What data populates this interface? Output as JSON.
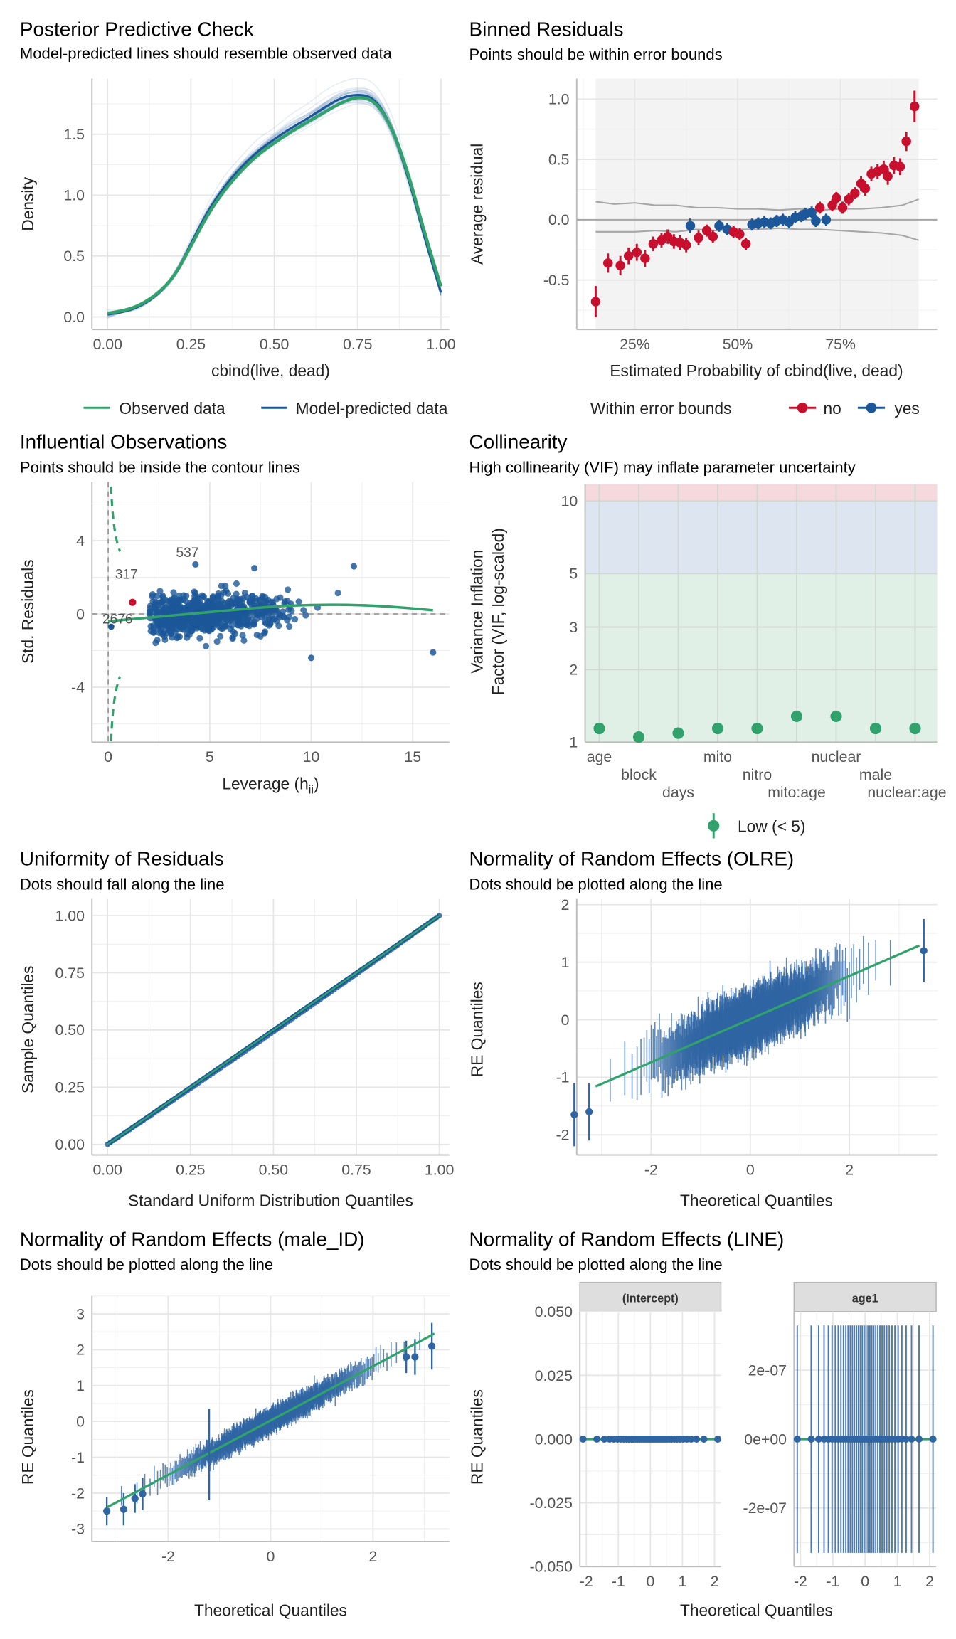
{
  "colors": {
    "green": "#31a26c",
    "blue": "#1b5799",
    "red": "#c8102e",
    "grid": "#e6e6e6",
    "axis": "#bdbdbd"
  },
  "chart_data": [
    {
      "type": "line",
      "title": "Posterior Predictive Check",
      "subtitle": "Model-predicted lines should resemble observed data",
      "xlabel": "cbind(live, dead)",
      "ylabel": "Density",
      "xlim": [
        -0.047,
        1.025
      ],
      "ylim": [
        -0.103,
        1.957
      ],
      "xticks": [
        0,
        0.25,
        0.5,
        0.75,
        1
      ],
      "xtick_labels": [
        "0.00",
        "0.25",
        "0.50",
        "0.75",
        "1.00"
      ],
      "yticks": [
        0,
        0.5,
        1,
        1.5
      ],
      "ytick_labels": [
        "0.0",
        "0.5",
        "1.0",
        "1.5"
      ],
      "legend": "bottom",
      "x": [
        0,
        0.05,
        0.1,
        0.15,
        0.2,
        0.25,
        0.3,
        0.35,
        0.4,
        0.45,
        0.5,
        0.55,
        0.6,
        0.65,
        0.7,
        0.75,
        0.8,
        0.85,
        0.9,
        0.95,
        1.0
      ],
      "series": [
        {
          "name": "Observed data",
          "color": "#31a26c",
          "values": [
            0.03,
            0.05,
            0.1,
            0.19,
            0.33,
            0.58,
            0.84,
            1.04,
            1.2,
            1.33,
            1.43,
            1.52,
            1.6,
            1.68,
            1.76,
            1.81,
            1.78,
            1.58,
            1.2,
            0.7,
            0.25
          ]
        },
        {
          "name": "Model-predicted data",
          "color": "#1b5799",
          "values": [
            0.02,
            0.04,
            0.09,
            0.18,
            0.33,
            0.6,
            0.87,
            1.07,
            1.23,
            1.36,
            1.46,
            1.55,
            1.63,
            1.72,
            1.8,
            1.83,
            1.8,
            1.58,
            1.17,
            0.66,
            0.2
          ]
        }
      ]
    },
    {
      "type": "scatter",
      "title": "Binned Residuals",
      "subtitle": "Points should be within error bounds",
      "xlabel": "Estimated Probability of cbind(live, dead)",
      "ylabel": "Average residual",
      "xlim": [
        10.9,
        98.5
      ],
      "ylim": [
        -0.91,
        1.17
      ],
      "xticks": [
        25,
        50,
        75
      ],
      "xtick_labels": [
        "25%",
        "50%",
        "75%"
      ],
      "yticks": [
        -0.5,
        0,
        0.5,
        1
      ],
      "ytick_labels": [
        "-0.5",
        "0.0",
        "0.5",
        "1.0"
      ],
      "legend": "bottom",
      "legend_title": "Within error bounds",
      "groups": [
        {
          "name": "no",
          "color": "#c8102e"
        },
        {
          "name": "yes",
          "color": "#1b5799"
        }
      ],
      "points": [
        [
          15.5,
          -0.68,
          0.13,
          "no"
        ],
        [
          18.5,
          -0.36,
          0.08,
          "no"
        ],
        [
          21.5,
          -0.38,
          0.08,
          "no"
        ],
        [
          23.5,
          -0.3,
          0.07,
          "no"
        ],
        [
          25.5,
          -0.27,
          0.07,
          "no"
        ],
        [
          27.5,
          -0.32,
          0.07,
          "no"
        ],
        [
          29.5,
          -0.2,
          0.06,
          "no"
        ],
        [
          31.5,
          -0.17,
          0.06,
          "no"
        ],
        [
          33,
          -0.14,
          0.06,
          "no"
        ],
        [
          34.5,
          -0.18,
          0.06,
          "no"
        ],
        [
          36,
          -0.19,
          0.06,
          "no"
        ],
        [
          37.5,
          -0.21,
          0.06,
          "no"
        ],
        [
          38.5,
          -0.05,
          0.06,
          "yes"
        ],
        [
          40.5,
          -0.15,
          0.06,
          "no"
        ],
        [
          42.5,
          -0.09,
          0.05,
          "no"
        ],
        [
          44,
          -0.14,
          0.05,
          "no"
        ],
        [
          45.5,
          -0.05,
          0.05,
          "yes"
        ],
        [
          47.5,
          -0.08,
          0.05,
          "yes"
        ],
        [
          49,
          -0.1,
          0.05,
          "no"
        ],
        [
          50.5,
          -0.12,
          0.05,
          "no"
        ],
        [
          52,
          -0.2,
          0.05,
          "no"
        ],
        [
          53.5,
          -0.04,
          0.05,
          "yes"
        ],
        [
          55,
          -0.03,
          0.05,
          "yes"
        ],
        [
          56.5,
          -0.02,
          0.05,
          "yes"
        ],
        [
          58,
          -0.03,
          0.05,
          "yes"
        ],
        [
          59.5,
          -0.01,
          0.05,
          "yes"
        ],
        [
          61,
          0.0,
          0.05,
          "yes"
        ],
        [
          62.5,
          -0.02,
          0.05,
          "yes"
        ],
        [
          64,
          0.02,
          0.05,
          "yes"
        ],
        [
          65.5,
          0.03,
          0.05,
          "yes"
        ],
        [
          66.5,
          0.05,
          0.05,
          "yes"
        ],
        [
          68,
          0.06,
          0.05,
          "yes"
        ],
        [
          69,
          -0.01,
          0.05,
          "yes"
        ],
        [
          70,
          0.1,
          0.05,
          "no"
        ],
        [
          71.5,
          0.0,
          0.05,
          "yes"
        ],
        [
          73,
          0.12,
          0.05,
          "no"
        ],
        [
          74,
          0.18,
          0.05,
          "no"
        ],
        [
          75.5,
          0.1,
          0.05,
          "no"
        ],
        [
          77,
          0.17,
          0.05,
          "no"
        ],
        [
          78.5,
          0.22,
          0.05,
          "no"
        ],
        [
          80,
          0.3,
          0.06,
          "no"
        ],
        [
          81,
          0.26,
          0.06,
          "no"
        ],
        [
          82.5,
          0.38,
          0.06,
          "no"
        ],
        [
          84,
          0.4,
          0.06,
          "no"
        ],
        [
          85.5,
          0.42,
          0.07,
          "no"
        ],
        [
          86.5,
          0.36,
          0.07,
          "no"
        ],
        [
          88,
          0.45,
          0.07,
          "no"
        ],
        [
          89.5,
          0.44,
          0.07,
          "no"
        ],
        [
          91,
          0.65,
          0.08,
          "no"
        ],
        [
          93,
          0.94,
          0.13,
          "no"
        ]
      ],
      "bounds": {
        "x": [
          15.5,
          20,
          25,
          30,
          35,
          40,
          45,
          50,
          55,
          60,
          65,
          70,
          75,
          80,
          85,
          90,
          94
        ],
        "upper": [
          0.15,
          0.13,
          0.14,
          0.12,
          0.12,
          0.1,
          0.1,
          0.09,
          0.09,
          0.08,
          0.09,
          0.08,
          0.09,
          0.09,
          0.1,
          0.12,
          0.17
        ],
        "lower": [
          -0.1,
          -0.1,
          -0.1,
          -0.09,
          -0.1,
          -0.08,
          -0.09,
          -0.08,
          -0.08,
          -0.07,
          -0.08,
          -0.08,
          -0.09,
          -0.1,
          -0.11,
          -0.13,
          -0.17
        ]
      }
    },
    {
      "type": "scatter",
      "title": "Influential Observations",
      "subtitle": "Points should be inside the contour lines",
      "xlabel_parts": [
        "Leverage (h",
        "ii",
        ")"
      ],
      "ylabel": "Std. Residuals",
      "xlim": [
        -0.8,
        16.8
      ],
      "ylim": [
        -7.0,
        7.2
      ],
      "xticks": [
        0,
        5,
        10,
        15
      ],
      "xtick_labels": [
        "0",
        "5",
        "10",
        "15"
      ],
      "yticks": [
        -4,
        0,
        4
      ],
      "ytick_labels": [
        "-4",
        "0",
        "4"
      ],
      "labeled_points": [
        {
          "label": "537",
          "x": 3.9,
          "y": 3.4,
          "color": "#1b5799"
        },
        {
          "label": "317",
          "x": 0.9,
          "y": 2.2,
          "color": "#1b5799"
        },
        {
          "label": "2676",
          "x": 0.46,
          "y": -0.23,
          "color": "#c8102e",
          "px": 1.2,
          "py": 0.63
        }
      ],
      "outliers": [
        [
          16,
          -2.1
        ],
        [
          10,
          -2.4
        ],
        [
          12.1,
          2.6
        ],
        [
          7.2,
          2.5
        ],
        [
          4.3,
          2.7
        ]
      ],
      "loess": [
        [
          0,
          -0.4
        ],
        [
          2,
          -0.2
        ],
        [
          4,
          0
        ],
        [
          6,
          0.2
        ],
        [
          8,
          0.4
        ],
        [
          10,
          0.5
        ],
        [
          12,
          0.5
        ],
        [
          14,
          0.4
        ],
        [
          16,
          0.2
        ]
      ]
    },
    {
      "type": "scatter",
      "title": "Collinearity",
      "subtitle": "High collinearity (VIF) may inflate parameter uncertainty",
      "ylabel_lines": [
        "Variance Inflation",
        "Factor (VIF, log-scaled)"
      ],
      "yscale": "log",
      "ylim": [
        1,
        11.75
      ],
      "yticks": [
        1,
        2,
        3,
        5,
        10
      ],
      "ytick_labels": [
        "1",
        "2",
        "3",
        "5",
        "10"
      ],
      "categories": [
        "age",
        "block",
        "days",
        "mito",
        "nitro",
        "mito:age",
        "nuclear",
        "male",
        "nuclear:age"
      ],
      "values": [
        1.14,
        1.05,
        1.09,
        1.14,
        1.14,
        1.28,
        1.28,
        1.14,
        1.14
      ],
      "bands": [
        {
          "from": 1,
          "to": 5,
          "color": "#e0f0e7"
        },
        {
          "from": 5,
          "to": 10,
          "color": "#dde5f0"
        },
        {
          "from": 10,
          "to": 11.75,
          "color": "#f5d9dd"
        }
      ],
      "legend": "bottom",
      "legend_label": "Low (< 5)"
    },
    {
      "type": "scatter",
      "title": "Uniformity of Residuals",
      "subtitle": "Dots should fall along the line",
      "xlabel": "Standard Uniform Distribution Quantiles",
      "ylabel": "Sample Quantiles",
      "xlim": [
        -0.047,
        1.03
      ],
      "ylim": [
        -0.046,
        1.073
      ],
      "xticks": [
        0,
        0.25,
        0.5,
        0.75,
        1
      ],
      "xtick_labels": [
        "0.00",
        "0.25",
        "0.50",
        "0.75",
        "1.00"
      ],
      "yticks": [
        0,
        0.25,
        0.5,
        0.75,
        1
      ],
      "ytick_labels": [
        "0.00",
        "0.25",
        "0.50",
        "0.75",
        "1.00"
      ]
    },
    {
      "type": "scatter",
      "title": "Normality of Random Effects (OLRE)",
      "subtitle": "Dots should be plotted along the line",
      "xlabel": "Theoretical Quantiles",
      "ylabel": "RE Quantiles",
      "xlim": [
        -3.5,
        3.77
      ],
      "ylim": [
        -2.35,
        2.1
      ],
      "xticks": [
        -2,
        0,
        2
      ],
      "xtick_labels": [
        "-2",
        "0",
        "2"
      ],
      "yticks": [
        -2,
        -1,
        0,
        1,
        2
      ],
      "ytick_labels": [
        "-2",
        "-1",
        "0",
        "1",
        "2"
      ],
      "reference_line": [
        [
          -3.12,
          -1.16
        ],
        [
          3.41,
          1.29
        ]
      ],
      "extreme_points": [
        [
          -3.55,
          -1.65,
          0.55
        ],
        [
          -3.25,
          -1.6,
          0.5
        ],
        [
          3.5,
          1.2,
          0.55
        ]
      ]
    },
    {
      "type": "scatter",
      "title": "Normality of Random Effects (male_ID)",
      "subtitle": "Dots should be plotted along the line",
      "xlabel": "Theoretical Quantiles",
      "ylabel": "RE Quantiles",
      "xlim": [
        -3.49,
        3.49
      ],
      "ylim": [
        -3.35,
        3.5
      ],
      "xticks": [
        -2,
        0,
        2
      ],
      "xtick_labels": [
        "-2",
        "0",
        "2"
      ],
      "yticks": [
        -3,
        -2,
        -1,
        0,
        1,
        2,
        3
      ],
      "ytick_labels": [
        "-3",
        "-2",
        "-1",
        "0",
        "1",
        "2",
        "3"
      ],
      "reference_line": [
        [
          -3.2,
          -2.4
        ],
        [
          3.2,
          2.45
        ]
      ],
      "extreme_points": [
        [
          -3.2,
          -2.5,
          0.4
        ],
        [
          -2.87,
          -2.45,
          0.45
        ],
        [
          -2.65,
          -2.15,
          0.4
        ],
        [
          -2.5,
          -2.02,
          0.45
        ],
        [
          2.65,
          1.8,
          0.45
        ],
        [
          2.82,
          1.8,
          0.5
        ],
        [
          3.15,
          2.1,
          0.65
        ]
      ],
      "outlier_bar": [
        -1.2,
        -2.2,
        0.35
      ]
    },
    {
      "type": "scatter",
      "title": "Normality of Random Effects (LINE)",
      "subtitle": "Dots should be plotted along the line",
      "xlabel": "Theoretical Quantiles",
      "ylabel": "RE Quantiles",
      "facets": [
        {
          "label": "(Intercept)",
          "ylim": [
            -0.05,
            0.05
          ],
          "yticks": [
            -0.05,
            -0.025,
            0,
            0.025,
            0.05
          ],
          "ytick_labels": [
            "-0.050",
            "-0.025",
            "0.000",
            "0.025",
            "0.050"
          ],
          "error": 0
        },
        {
          "label": "age1",
          "ylim": [
            -3.7e-07,
            3.7e-07
          ],
          "yticks": [
            -2e-07,
            0,
            2e-07
          ],
          "ytick_labels": [
            "-2e-07",
            "0e+00",
            "2e-07"
          ],
          "error": 3.3e-07
        }
      ],
      "xlim": [
        -2.2,
        2.2
      ],
      "xticks": [
        -2,
        -1,
        0,
        1,
        2
      ],
      "xtick_labels": [
        "-2",
        "-1",
        "0",
        "1",
        "2"
      ]
    }
  ]
}
